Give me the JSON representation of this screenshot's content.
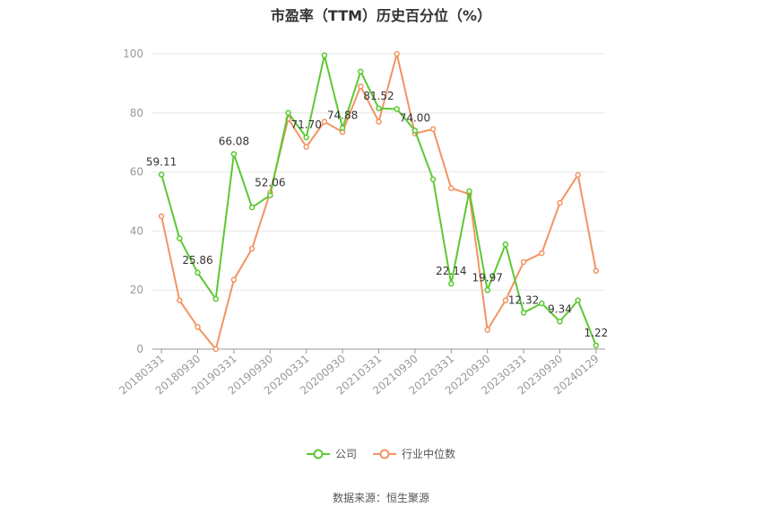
{
  "chart_data": {
    "type": "line",
    "title": "市盈率（TTM）历史百分位（%）",
    "source": "数据来源：恒生聚源",
    "ylim": [
      0,
      100
    ],
    "yticks": [
      0,
      20,
      40,
      60,
      80,
      100
    ],
    "grid": true,
    "legend_position": "bottom",
    "x": [
      "20180331",
      "20180630",
      "20180930",
      "20181231",
      "20190331",
      "20190630",
      "20190930",
      "20191231",
      "20200331",
      "20200630",
      "20200930",
      "20201231",
      "20210331",
      "20210630",
      "20210930",
      "20211231",
      "20220331",
      "20220630",
      "20220930",
      "20221231",
      "20230331",
      "20230630",
      "20230930",
      "20231231",
      "20240129"
    ],
    "xtick_labels": [
      "20180331",
      "20180930",
      "20190331",
      "20190930",
      "20200331",
      "20200930",
      "20210331",
      "20210930",
      "20220331",
      "20220930",
      "20230331",
      "20230930",
      "20240129"
    ],
    "series": [
      {
        "name": "公司",
        "color": "#5cc832",
        "values": [
          59.11,
          37.5,
          25.86,
          17,
          66.08,
          48,
          52.06,
          80,
          71.7,
          99.5,
          74.88,
          94,
          81.52,
          81.3,
          74.0,
          57.5,
          22.14,
          53.5,
          19.97,
          35.5,
          12.32,
          15.5,
          9.34,
          16.5,
          1.22
        ]
      },
      {
        "name": "行业中位数",
        "color": "#f29463",
        "values": [
          45,
          16.5,
          7.5,
          0,
          23.5,
          34,
          53,
          78,
          68.5,
          77,
          73.5,
          89,
          77,
          100,
          73,
          74.5,
          54.5,
          52.5,
          6.5,
          16.5,
          29.5,
          32.5,
          49.5,
          59,
          26.5
        ]
      }
    ],
    "data_labels": [
      {
        "index": 0,
        "text": "59.11"
      },
      {
        "index": 2,
        "text": "25.86"
      },
      {
        "index": 4,
        "text": "66.08"
      },
      {
        "index": 6,
        "text": "52.06"
      },
      {
        "index": 8,
        "text": "71.70"
      },
      {
        "index": 10,
        "text": "74.88"
      },
      {
        "index": 12,
        "text": "81.52"
      },
      {
        "index": 14,
        "text": "74.00"
      },
      {
        "index": 16,
        "text": "22.14"
      },
      {
        "index": 18,
        "text": "19.97"
      },
      {
        "index": 20,
        "text": "12.32"
      },
      {
        "index": 22,
        "text": "9.34"
      },
      {
        "index": 24,
        "text": "1.22"
      }
    ]
  }
}
